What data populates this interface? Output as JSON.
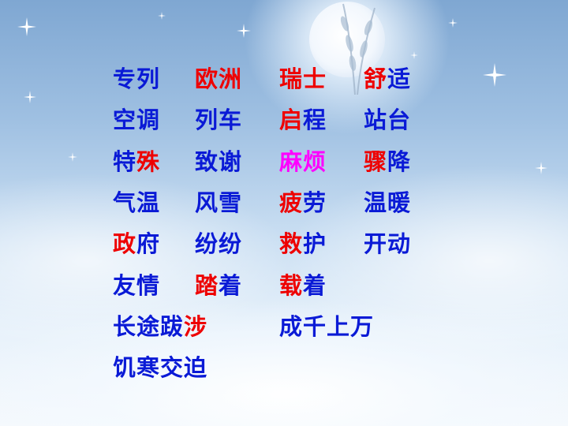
{
  "colors": {
    "blue": "#0a1ad6",
    "red": "#ee0000",
    "magenta": "#ff00ff"
  },
  "rows": [
    [
      [
        {
          "t": "专列",
          "c": "blue"
        }
      ],
      [
        {
          "t": "欧洲",
          "c": "red"
        }
      ],
      [
        {
          "t": "瑞士",
          "c": "red"
        }
      ],
      [
        {
          "t": "舒",
          "c": "red"
        },
        {
          "t": "适",
          "c": "blue"
        }
      ]
    ],
    [
      [
        {
          "t": "空调",
          "c": "blue"
        }
      ],
      [
        {
          "t": "列车",
          "c": "blue"
        }
      ],
      [
        {
          "t": "启",
          "c": "red"
        },
        {
          "t": "程",
          "c": "blue"
        }
      ],
      [
        {
          "t": "站台",
          "c": "blue"
        }
      ]
    ],
    [
      [
        {
          "t": "特",
          "c": "blue"
        },
        {
          "t": "殊",
          "c": "red"
        }
      ],
      [
        {
          "t": "致谢",
          "c": "blue"
        }
      ],
      [
        {
          "t": "麻烦",
          "c": "magenta"
        }
      ],
      [
        {
          "t": "骤",
          "c": "red"
        },
        {
          "t": "降",
          "c": "blue"
        }
      ]
    ],
    [
      [
        {
          "t": "气温",
          "c": "blue"
        }
      ],
      [
        {
          "t": "风雪",
          "c": "blue"
        }
      ],
      [
        {
          "t": "疲",
          "c": "red"
        },
        {
          "t": "劳",
          "c": "blue"
        }
      ],
      [
        {
          "t": "温暖",
          "c": "blue"
        }
      ]
    ],
    [
      [
        {
          "t": "政",
          "c": "red"
        },
        {
          "t": "府",
          "c": "blue"
        }
      ],
      [
        {
          "t": "纷纷",
          "c": "blue"
        }
      ],
      [
        {
          "t": "救",
          "c": "red"
        },
        {
          "t": "护",
          "c": "blue"
        }
      ],
      [
        {
          "t": "开动",
          "c": "blue"
        }
      ]
    ],
    [
      [
        {
          "t": "友情",
          "c": "blue"
        }
      ],
      [
        {
          "t": "踏",
          "c": "red"
        },
        {
          "t": "着",
          "c": "blue"
        }
      ],
      [
        {
          "t": "载",
          "c": "red"
        },
        {
          "t": "着",
          "c": "blue"
        }
      ]
    ],
    [
      [
        {
          "t": "长途跋",
          "c": "blue"
        },
        {
          "t": "涉",
          "c": "red"
        }
      ],
      [],
      [
        {
          "t": "成千上万",
          "c": "blue"
        }
      ]
    ],
    [
      [
        {
          "t": "饥寒交迫",
          "c": "blue"
        }
      ]
    ]
  ]
}
